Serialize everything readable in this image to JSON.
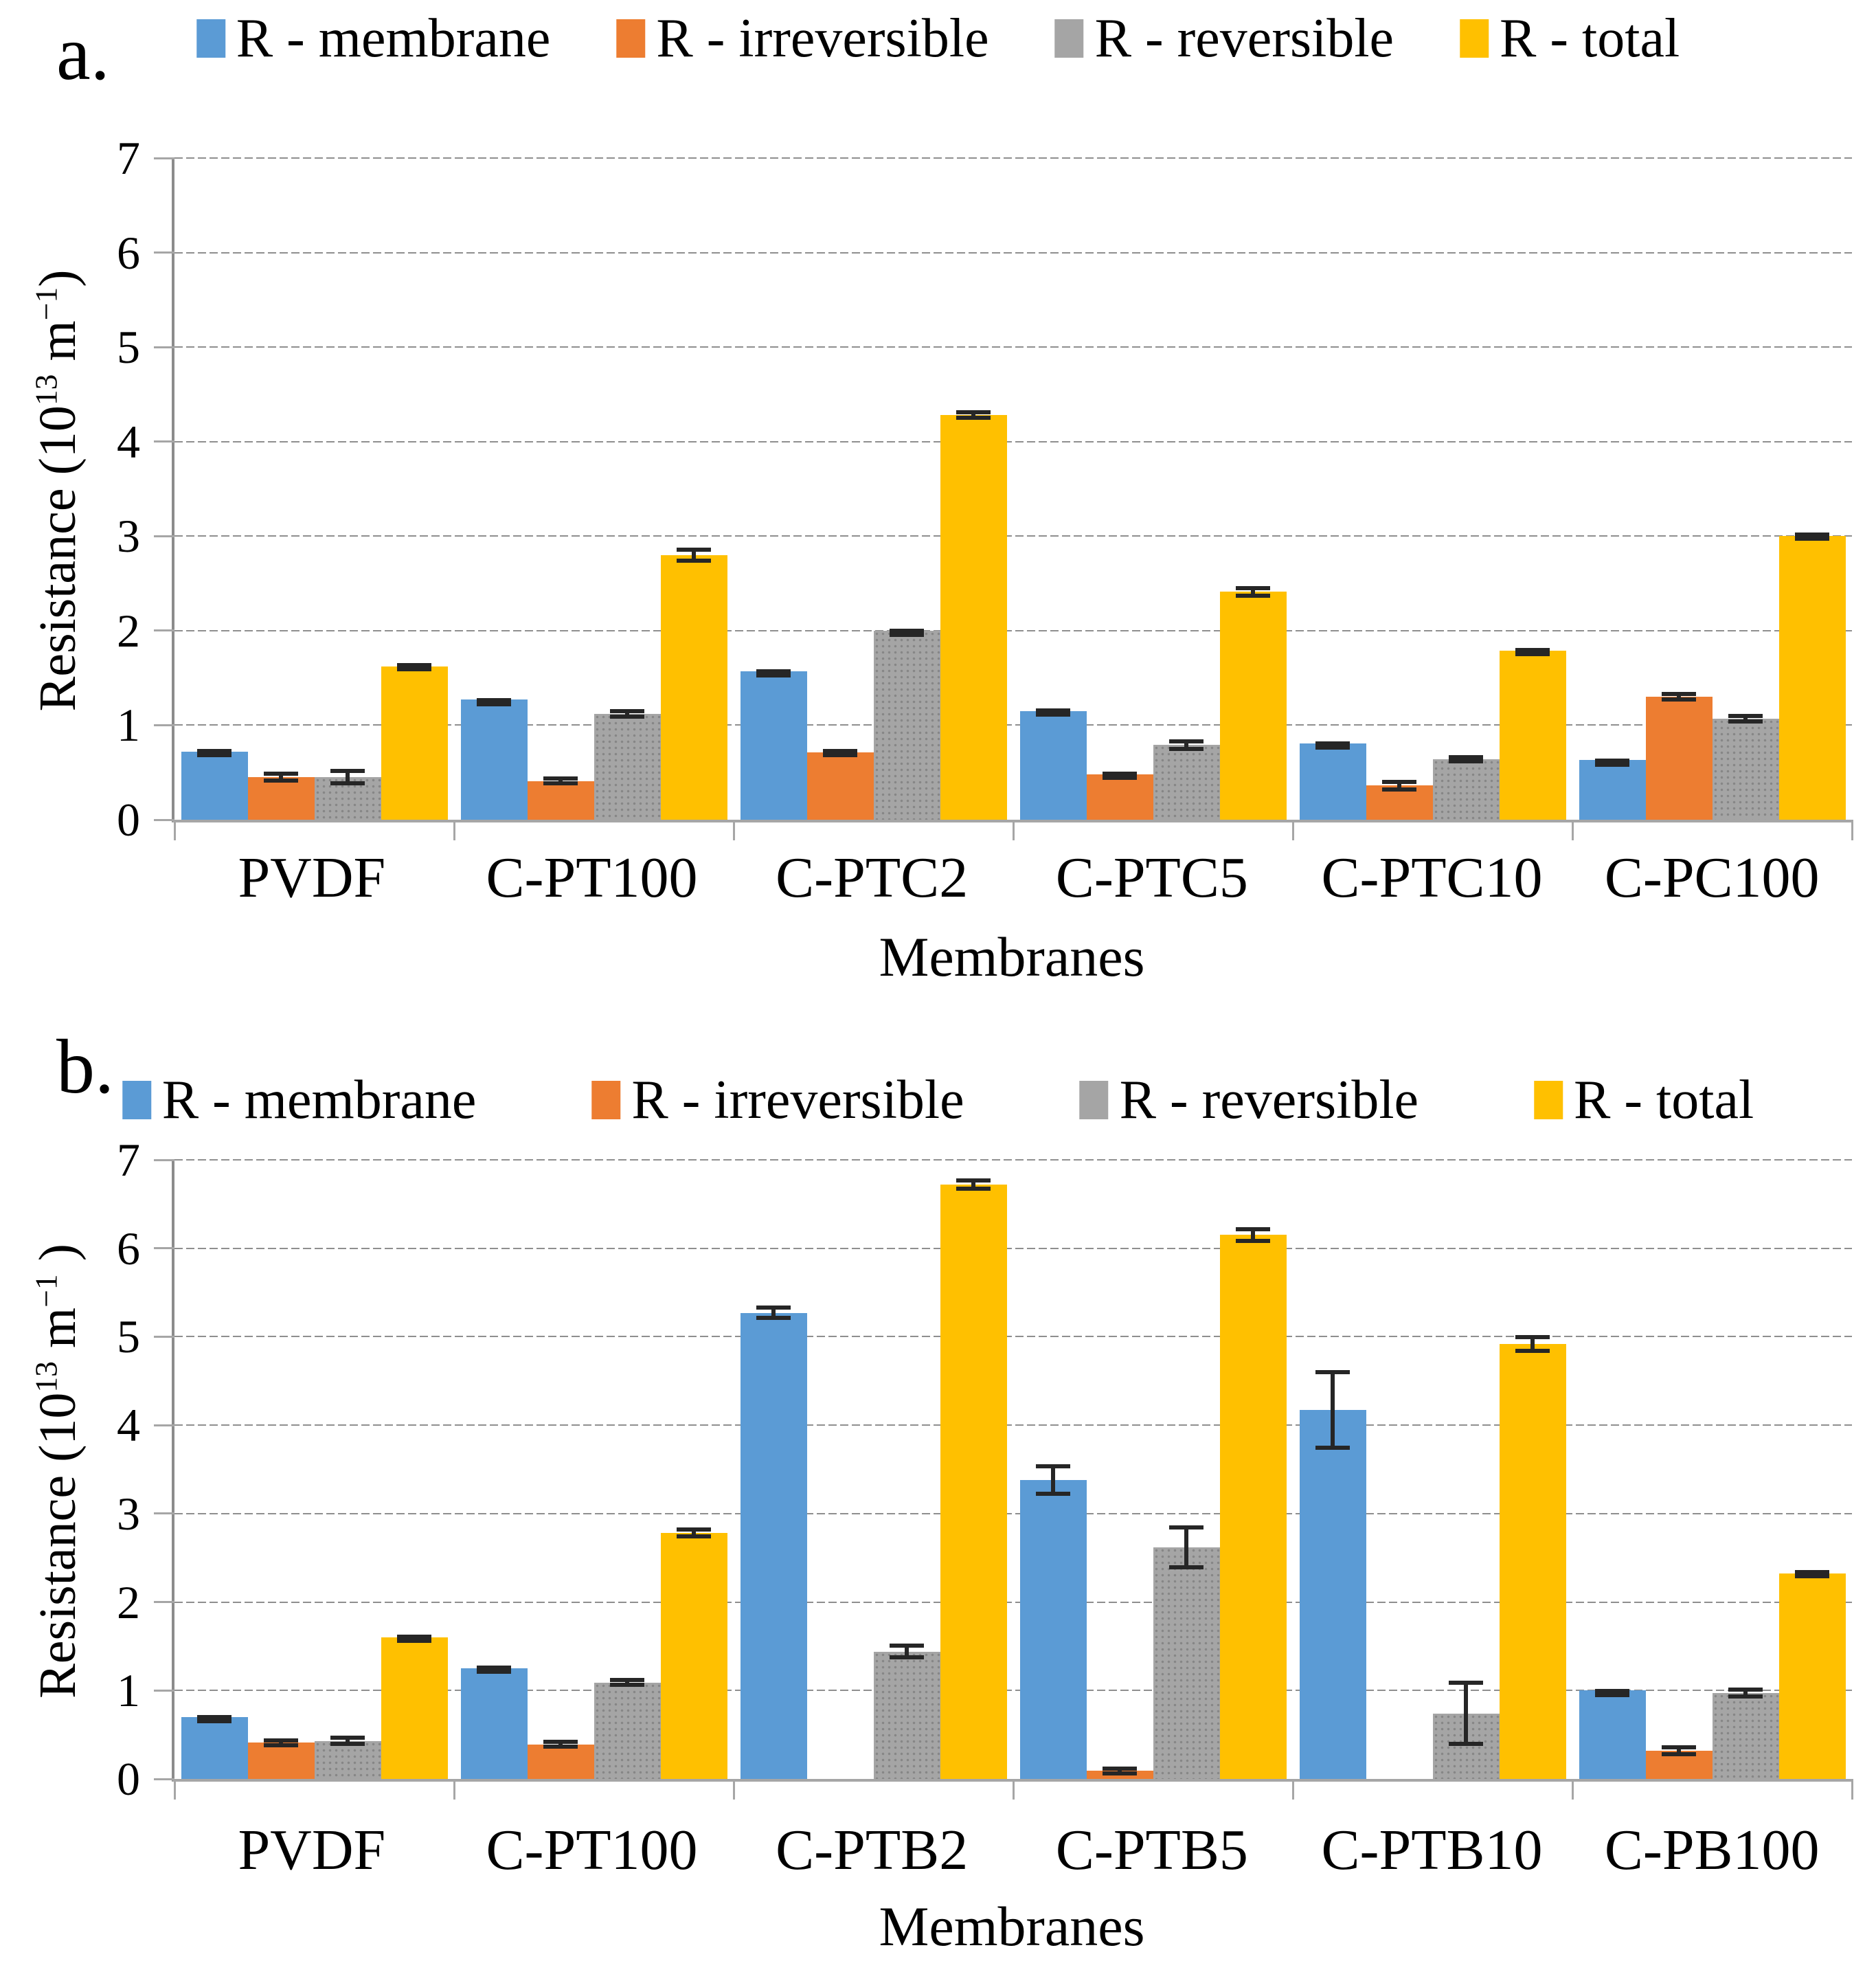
{
  "page": {
    "background": "#FFFFFF"
  },
  "chart_data": [
    {
      "panel_label": "a.",
      "type": "bar",
      "title": "",
      "categories": [
        "PVDF",
        "C-PT100",
        "C-PTC2",
        "C-PTC5",
        "C-PTC10",
        "C-PC100"
      ],
      "series": [
        {
          "name": "R - membrane",
          "color": "#5B9BD5",
          "pattern": false,
          "values": [
            0.72,
            1.27,
            1.57,
            1.15,
            0.81,
            0.63
          ],
          "errors": [
            0.03,
            0.02,
            0.02,
            0.03,
            0.02,
            0.02
          ]
        },
        {
          "name": "R - irreversible",
          "color": "#ED7D31",
          "pattern": false,
          "values": [
            0.45,
            0.41,
            0.71,
            0.48,
            0.36,
            1.3
          ],
          "errors": [
            0.06,
            0.05,
            0.04,
            0.03,
            0.06,
            0.05
          ]
        },
        {
          "name": "R - reversible",
          "color": "#A5A5A5",
          "pattern": true,
          "values": [
            0.45,
            1.12,
            2.0,
            0.79,
            0.64,
            1.07
          ],
          "errors": [
            0.09,
            0.05,
            0.02,
            0.06,
            0.04,
            0.05
          ]
        },
        {
          "name": "R - total",
          "color": "#FFC000",
          "pattern": false,
          "values": [
            1.62,
            2.8,
            4.28,
            2.41,
            1.79,
            3.0
          ],
          "errors": [
            0.04,
            0.08,
            0.05,
            0.06,
            0.03,
            0.04
          ]
        }
      ],
      "xlabel": "Membranes",
      "ylabel_parts": {
        "prefix": "Resistance (10",
        "sup1": "13",
        "mid": " m",
        "sup2": "−1",
        "suffix": ")"
      },
      "ylim": [
        0,
        7
      ],
      "yticks": [
        0,
        1,
        2,
        3,
        4,
        5,
        6,
        7
      ],
      "grid": true,
      "legend_position": "top",
      "error_bars": true
    },
    {
      "panel_label": "b.",
      "type": "bar",
      "title": "",
      "categories": [
        "PVDF",
        "C-PT100",
        "C-PTB2",
        "C-PTB5",
        "C-PTB10",
        "C-PB100"
      ],
      "series": [
        {
          "name": "R - membrane",
          "color": "#5B9BD5",
          "pattern": false,
          "values": [
            0.7,
            1.25,
            5.27,
            3.38,
            4.17,
            1.0
          ],
          "errors": [
            0.02,
            0.03,
            0.08,
            0.18,
            0.45,
            0.02
          ]
        },
        {
          "name": "R - irreversible",
          "color": "#ED7D31",
          "pattern": false,
          "values": [
            0.41,
            0.39,
            0,
            0.09,
            0,
            0.32
          ],
          "errors": [
            0.05,
            0.05,
            0,
            0.05,
            0,
            0.06
          ]
        },
        {
          "name": "R - reversible",
          "color": "#A5A5A5",
          "pattern": true,
          "values": [
            0.43,
            1.09,
            1.44,
            2.62,
            0.74,
            0.97
          ],
          "errors": [
            0.06,
            0.05,
            0.09,
            0.25,
            0.37,
            0.06
          ]
        },
        {
          "name": "R - total",
          "color": "#FFC000",
          "pattern": false,
          "values": [
            1.6,
            2.78,
            6.72,
            6.15,
            4.92,
            2.32
          ],
          "errors": [
            0.03,
            0.06,
            0.07,
            0.09,
            0.1,
            0.04
          ]
        }
      ],
      "xlabel": "Membranes",
      "ylabel_parts": {
        "prefix": "Resistance (10",
        "sup1": "13",
        "mid": " m",
        "sup2": "−1",
        "suffix": " )"
      },
      "ylim": [
        0,
        7
      ],
      "yticks": [
        0,
        1,
        2,
        3,
        4,
        5,
        6,
        7
      ],
      "grid": true,
      "legend_position": "top",
      "error_bars": true
    }
  ]
}
